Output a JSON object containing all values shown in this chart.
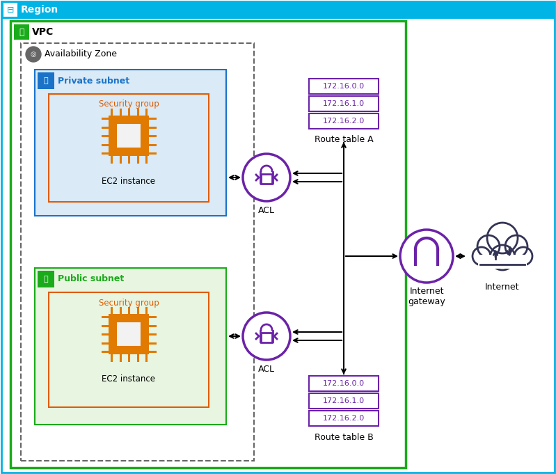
{
  "region_label": "Region",
  "vpc_label": "VPC",
  "az_label": "Availability Zone",
  "private_subnet_label": "Private subnet",
  "public_subnet_label": "Public subnet",
  "security_group_label": "Security group",
  "ec2_label": "EC2 instance",
  "acl_label": "ACL",
  "internet_gateway_label": "Internet\ngateway",
  "internet_label": "Internet",
  "route_table_a_label": "Route table A",
  "route_table_b_label": "Route table B",
  "route_entries_a": [
    "172.16.0.0",
    "172.16.1.0",
    "172.16.2.0"
  ],
  "route_entries_b": [
    "172.16.0.0",
    "172.16.1.0",
    "172.16.2.0"
  ],
  "region_border_color": "#00B4E6",
  "vpc_border_color": "#1AAB1A",
  "az_border_color": "#666666",
  "private_subnet_bg": "#daeaf7",
  "private_subnet_border": "#1a73c8",
  "public_subnet_bg": "#e8f5e1",
  "public_subnet_border": "#1AAB1A",
  "security_group_border": "#E05C00",
  "security_group_label_color": "#E05C00",
  "chip_color": "#E07A00",
  "chip_inner_bg": "#f0f0f0",
  "acl_color": "#6B22A8",
  "route_entry_color": "#6B22A8",
  "igw_color": "#6B22A8",
  "cloud_color": "#333355",
  "arrow_color": "#000000",
  "text_color": "#000000",
  "blue_icon_bg": "#1a73c8",
  "green_icon_bg": "#1AAB1A",
  "gray_icon_bg": "#555555",
  "region_bg": "#ffffff",
  "title_bg": "#00B4E6"
}
